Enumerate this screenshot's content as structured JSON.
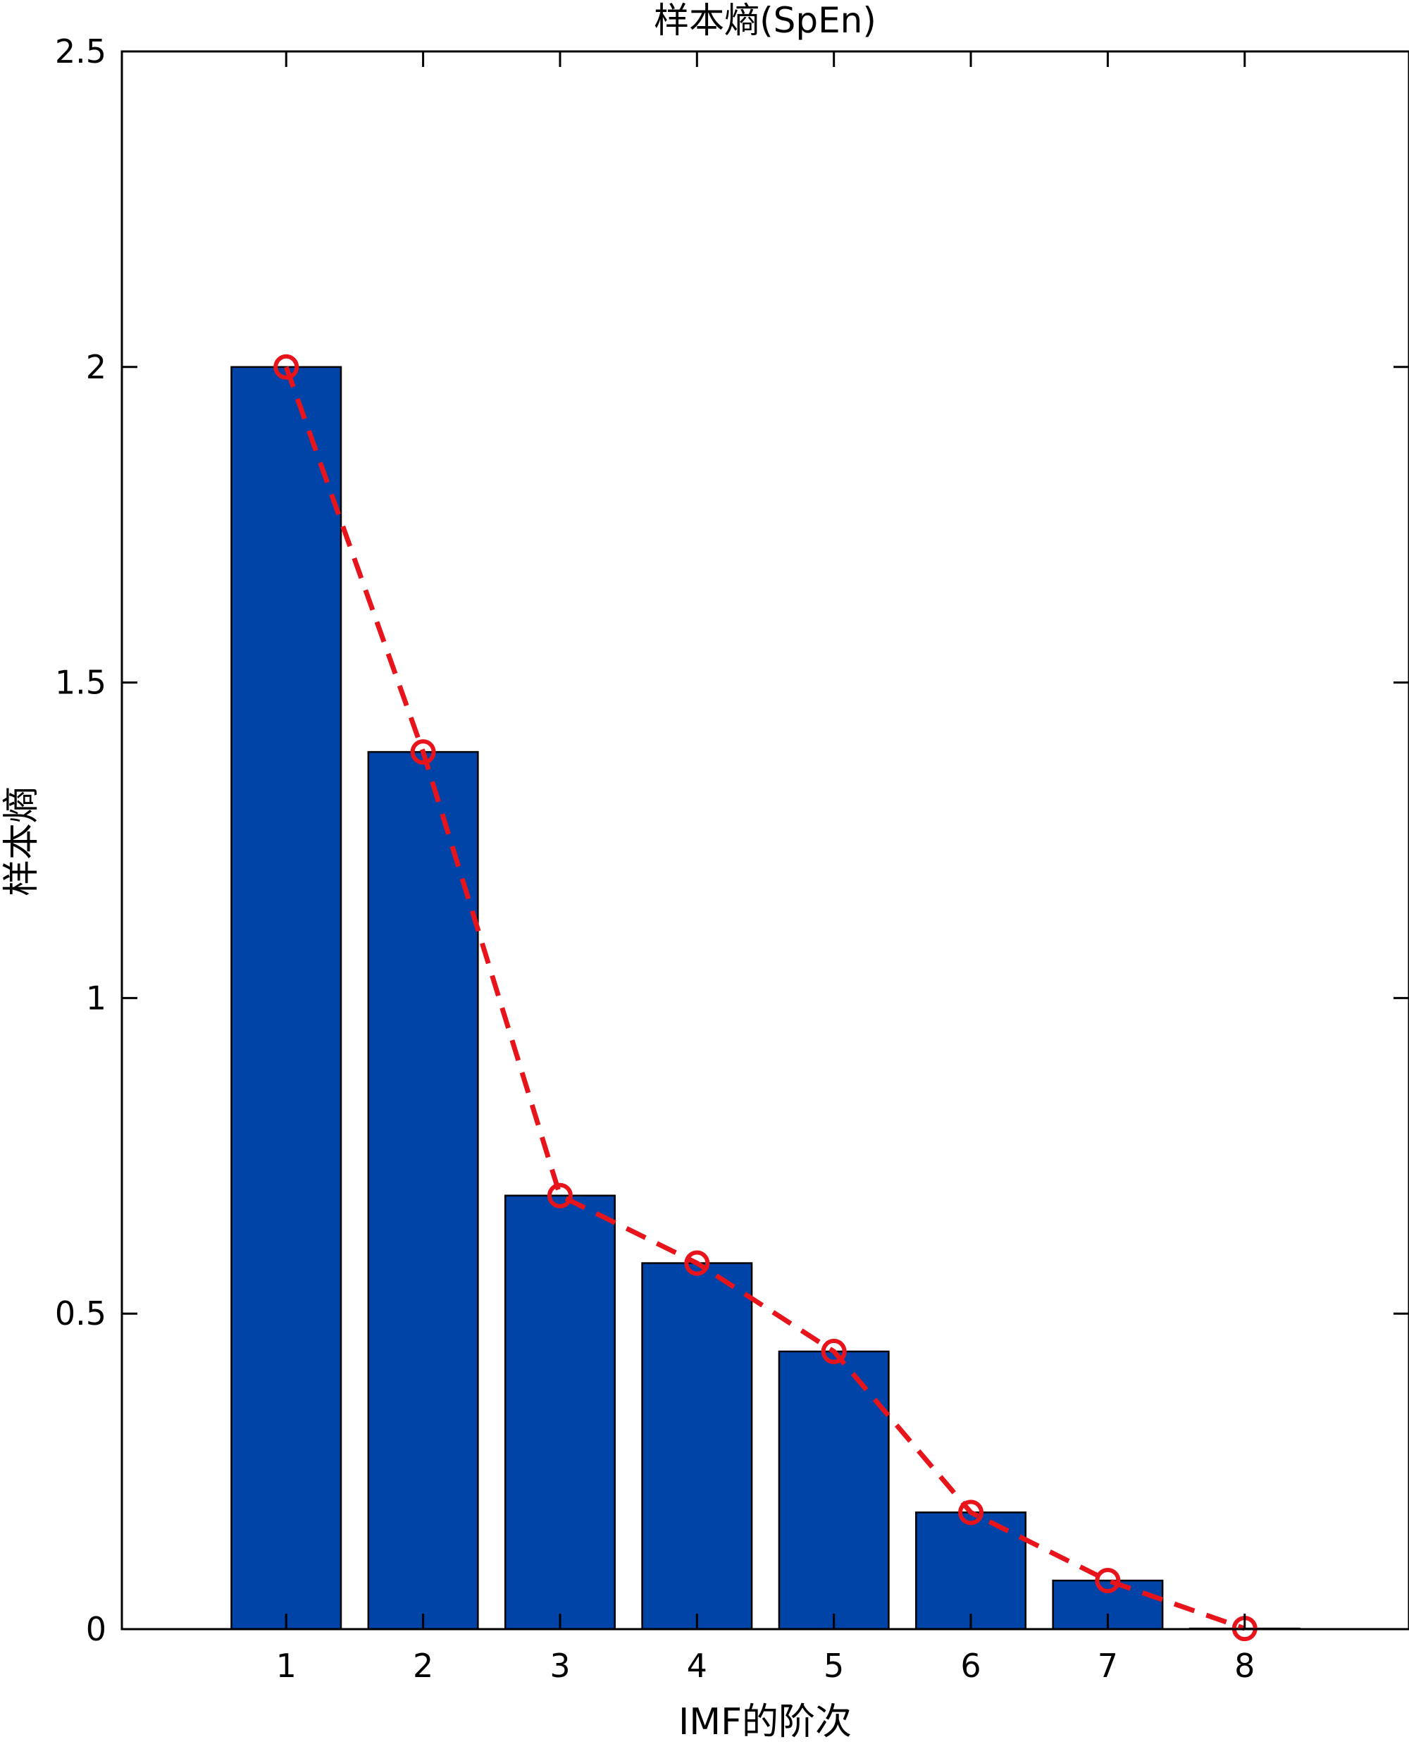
{
  "chart_data": {
    "type": "bar",
    "title": "样本熵(SpEn)",
    "xlabel": "IMF的阶次",
    "ylabel": "样本熵",
    "categories": [
      "1",
      "2",
      "3",
      "4",
      "5",
      "6",
      "7",
      "8"
    ],
    "x": [
      1,
      2,
      3,
      4,
      5,
      6,
      7,
      8
    ],
    "series": [
      {
        "type": "bar",
        "values": [
          2.0,
          1.39,
          0.687,
          0.58,
          0.44,
          0.185,
          0.077,
          0.001
        ]
      },
      {
        "type": "line",
        "style": "dashed",
        "marker": "circle",
        "values": [
          2.0,
          1.39,
          0.687,
          0.58,
          0.44,
          0.185,
          0.077,
          0.001
        ]
      }
    ],
    "xlim": [
      -0.2,
      9.2
    ],
    "ylim": [
      0,
      2.5
    ],
    "yticks": [
      "0",
      "0.5",
      "1",
      "1.5",
      "2",
      "2.5"
    ],
    "grid": false,
    "colors": {
      "bar_fill": "#0044A8",
      "bar_edge": "#000000",
      "line": "#E8141C",
      "axis": "#000000"
    }
  }
}
